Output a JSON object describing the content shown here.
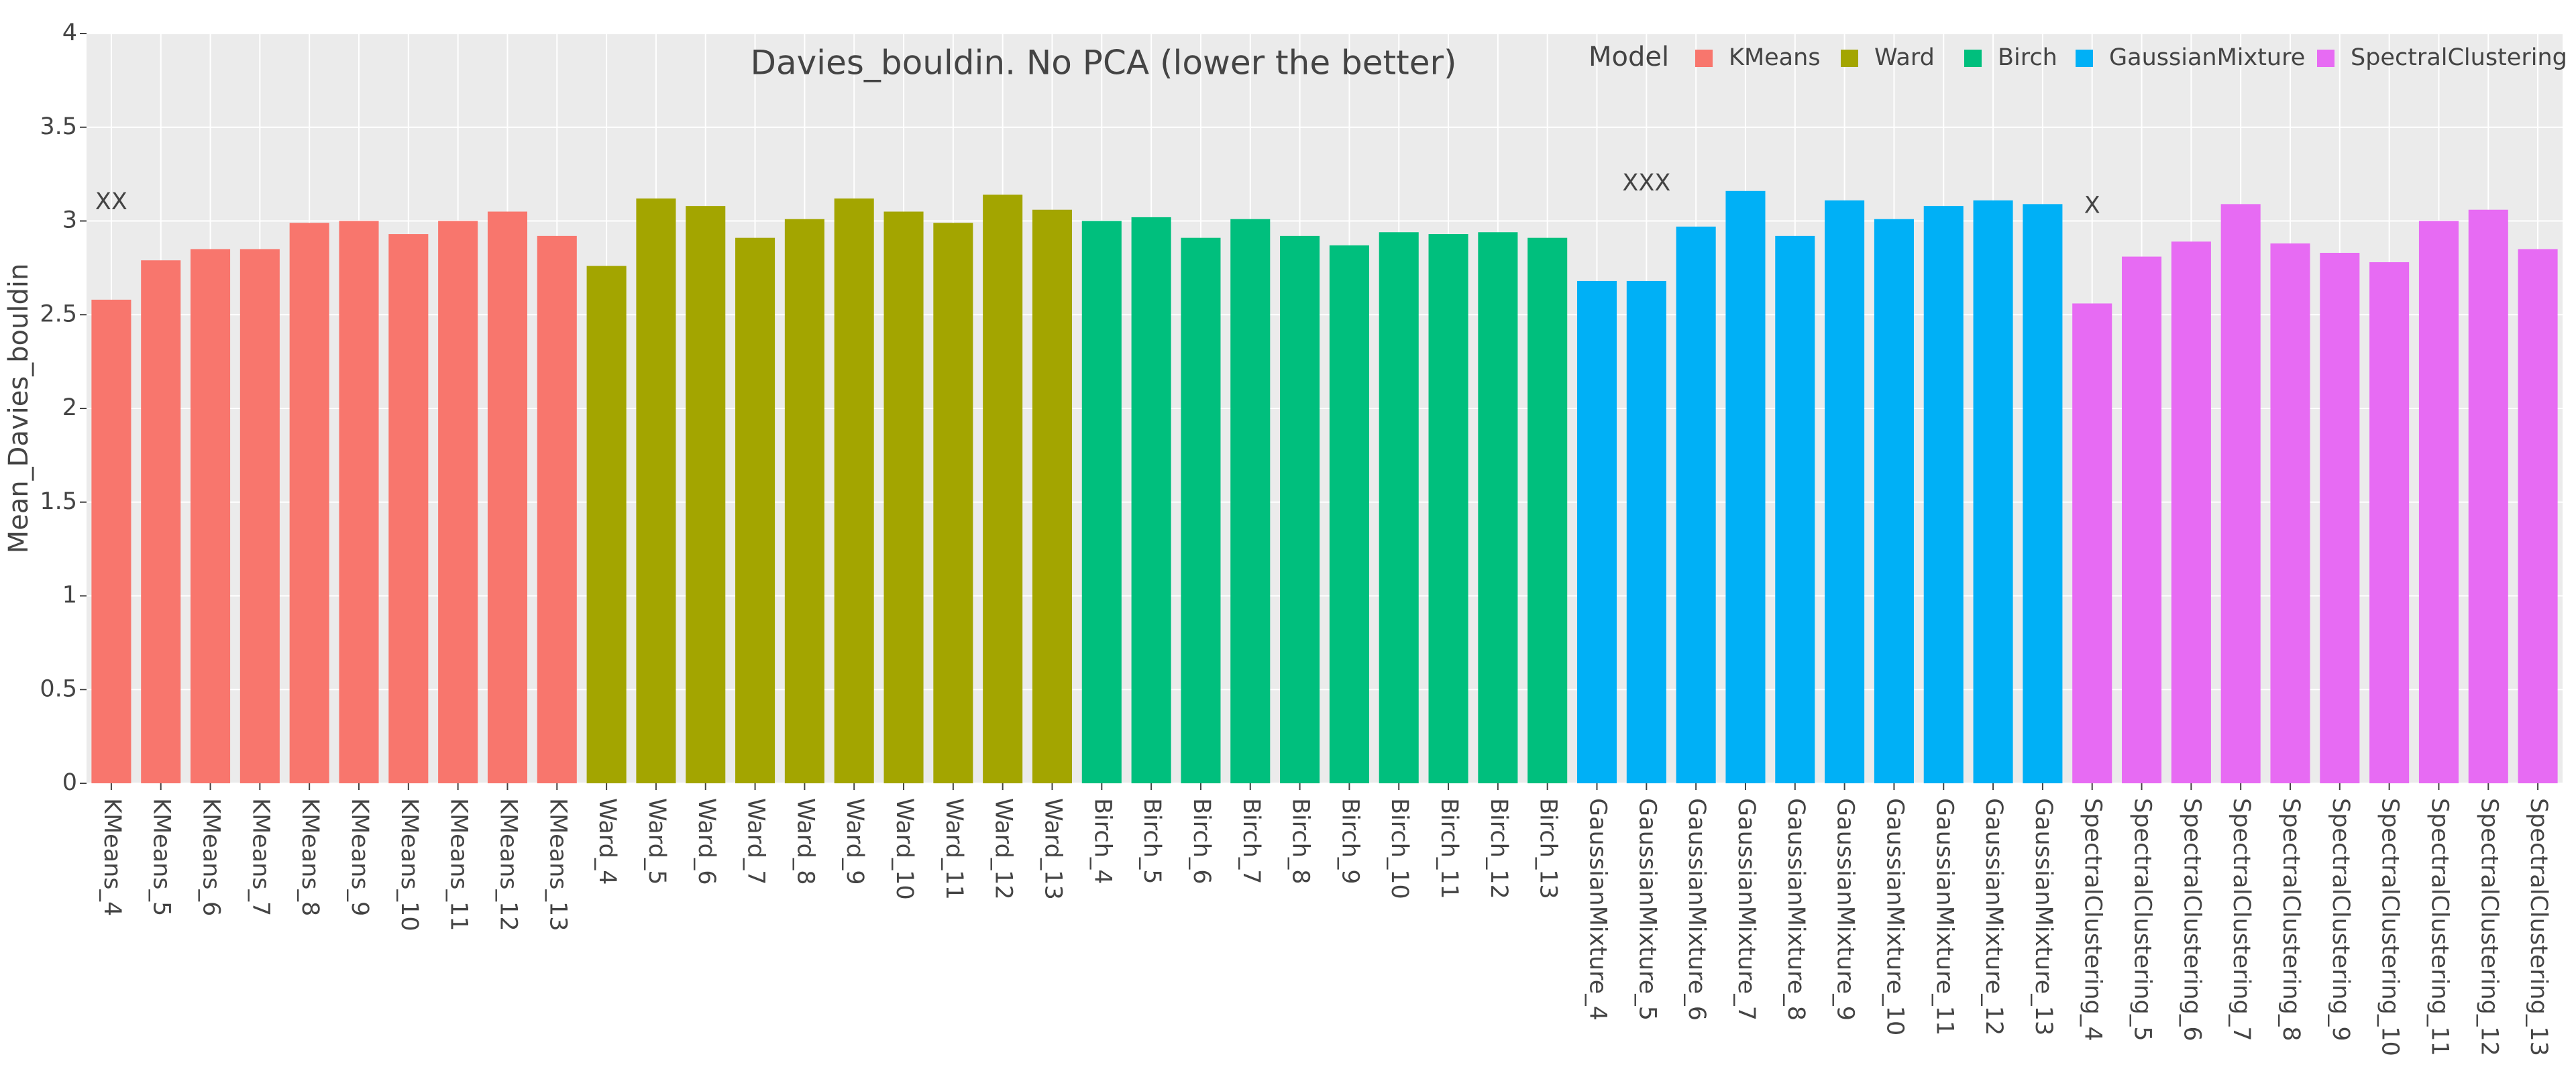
{
  "chart_data": {
    "type": "bar",
    "title": "Davies_bouldin. No PCA (lower the better)",
    "y_label": "Mean_Davies_bouldin",
    "legend_title": "Model",
    "legend": "top-right",
    "grid": true,
    "ylim": [
      0,
      4
    ],
    "yticks": [
      0,
      0.5,
      1,
      1.5,
      2,
      2.5,
      3,
      3.5,
      4
    ],
    "series": [
      {
        "name": "KMeans",
        "color": "#F8766D",
        "categories": [
          "KMeans_4",
          "KMeans_5",
          "KMeans_6",
          "KMeans_7",
          "KMeans_8",
          "KMeans_9",
          "KMeans_10",
          "KMeans_11",
          "KMeans_12",
          "KMeans_13"
        ],
        "values": [
          2.58,
          2.79,
          2.85,
          2.85,
          2.99,
          3.0,
          2.93,
          3.0,
          3.05,
          2.92
        ]
      },
      {
        "name": "Ward",
        "color": "#A3A500",
        "categories": [
          "Ward_4",
          "Ward_5",
          "Ward_6",
          "Ward_7",
          "Ward_8",
          "Ward_9",
          "Ward_10",
          "Ward_11",
          "Ward_12",
          "Ward_13"
        ],
        "values": [
          2.76,
          3.12,
          3.08,
          2.91,
          3.01,
          3.12,
          3.05,
          2.99,
          3.14,
          3.06
        ]
      },
      {
        "name": "Birch",
        "color": "#00BF7D",
        "categories": [
          "Birch_4",
          "Birch_5",
          "Birch_6",
          "Birch_7",
          "Birch_8",
          "Birch_9",
          "Birch_10",
          "Birch_11",
          "Birch_12",
          "Birch_13"
        ],
        "values": [
          3.0,
          3.02,
          2.91,
          3.01,
          2.92,
          2.87,
          2.94,
          2.93,
          2.94,
          2.91
        ]
      },
      {
        "name": "GaussianMixture",
        "color": "#00B0F6",
        "categories": [
          "GaussianMixture_4",
          "GaussianMixture_5",
          "GaussianMixture_6",
          "GaussianMixture_7",
          "GaussianMixture_8",
          "GaussianMixture_9",
          "GaussianMixture_10",
          "GaussianMixture_11",
          "GaussianMixture_12",
          "GaussianMixture_13"
        ],
        "values": [
          2.68,
          2.68,
          2.97,
          3.16,
          2.92,
          3.11,
          3.01,
          3.08,
          3.11,
          3.09
        ]
      },
      {
        "name": "SpectralClustering",
        "color": "#E76BF3",
        "categories": [
          "SpectralClustering_4",
          "SpectralClustering_5",
          "SpectralClustering_6",
          "SpectralClustering_7",
          "SpectralClustering_8",
          "SpectralClustering_9",
          "SpectralClustering_10",
          "SpectralClustering_11",
          "SpectralClustering_12",
          "SpectralClustering_13"
        ],
        "values": [
          2.56,
          2.81,
          2.89,
          3.09,
          2.88,
          2.83,
          2.78,
          3.0,
          3.06,
          2.85
        ]
      }
    ],
    "annotations": [
      {
        "text": "XX",
        "x": "KMeans_4"
      },
      {
        "text": "XXX",
        "x": "GaussianMixture_5"
      },
      {
        "text": "X",
        "x": "SpectralClustering_4"
      }
    ]
  }
}
